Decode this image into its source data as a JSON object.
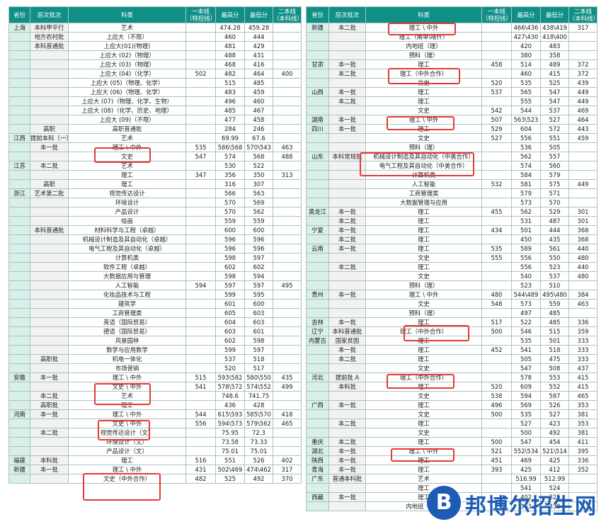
{
  "left": {
    "header": [
      "省份",
      "层次批次",
      "科类",
      "一本线（特控线）",
      "最高分",
      "最低分",
      "二本线（本科线）"
    ],
    "rows": [
      [
        "上海",
        "本科甲平行",
        "艺术",
        "",
        "474.28",
        "459.28",
        ""
      ],
      [
        "",
        "地方农村批",
        "上应大（不限）",
        "",
        "460",
        "444",
        ""
      ],
      [
        "",
        "本科普通批",
        "上应大(01)(物理)",
        "",
        "481",
        "429",
        ""
      ],
      [
        "",
        "",
        "上应大 (02)（物理）",
        "",
        "488",
        "431",
        ""
      ],
      [
        "",
        "",
        "上应大 (03)（物理）",
        "",
        "468",
        "416",
        ""
      ],
      [
        "",
        "",
        "上应大 (04)（化学）",
        "502",
        "482",
        "464",
        "400"
      ],
      [
        "",
        "",
        "上应大 (05)（物理、化学）",
        "",
        "515",
        "485",
        ""
      ],
      [
        "",
        "",
        "上应大 (06)（物理、化学）",
        "",
        "483",
        "459",
        ""
      ],
      [
        "",
        "",
        "上应大 (07)（物理、化学、生物）",
        "",
        "496",
        "460",
        ""
      ],
      [
        "",
        "",
        "上应大 (08)（化学、历史、地理）",
        "",
        "485",
        "467",
        ""
      ],
      [
        "",
        "",
        "上应大 (09)（不限）",
        "",
        "477",
        "458",
        ""
      ],
      [
        "",
        "高职",
        "高职普通批",
        "",
        "284",
        "246",
        ""
      ],
      [
        "江西",
        "提前本科（一）",
        "艺术",
        "",
        "69.99",
        "67.6",
        ""
      ],
      [
        "",
        "本一批",
        "理工 \\ 中外",
        "535",
        "586\\568",
        "570\\543",
        "463"
      ],
      [
        "",
        "",
        "文史",
        "547",
        "574",
        "568",
        "488"
      ],
      [
        "江苏",
        "本二批",
        "艺术",
        "",
        "530",
        "522",
        ""
      ],
      [
        "",
        "",
        "理工",
        "347",
        "356",
        "350",
        "313"
      ],
      [
        "",
        "高职",
        "理工",
        "",
        "316",
        "307",
        ""
      ],
      [
        "浙江",
        "艺术第二批",
        "视觉传达设计",
        "",
        "566",
        "563",
        ""
      ],
      [
        "",
        "",
        "环境设计",
        "",
        "570",
        "569",
        ""
      ],
      [
        "",
        "",
        "产品设计",
        "",
        "570",
        "562",
        ""
      ],
      [
        "",
        "",
        "绘画",
        "",
        "559",
        "559",
        ""
      ],
      [
        "",
        "本科普通批",
        "材料科学与工程（卓越）",
        "",
        "600",
        "600",
        ""
      ],
      [
        "",
        "",
        "机械设计制造及其自动化（卓越）",
        "",
        "596",
        "596",
        ""
      ],
      [
        "",
        "",
        "电气工程及其自动化（卓越）",
        "",
        "596",
        "596",
        ""
      ],
      [
        "",
        "",
        "计算机类",
        "",
        "598",
        "597",
        ""
      ],
      [
        "",
        "",
        "软件工程（卓越）",
        "",
        "602",
        "602",
        ""
      ],
      [
        "",
        "",
        "大数据应用与管理",
        "",
        "598",
        "594",
        ""
      ],
      [
        "",
        "",
        "人工智能",
        "594",
        "597",
        "597",
        "495"
      ],
      [
        "",
        "",
        "化妆品技术与工程",
        "",
        "599",
        "595",
        ""
      ],
      [
        "",
        "",
        "建筑学",
        "",
        "601",
        "600",
        ""
      ],
      [
        "",
        "",
        "工商管理类",
        "",
        "605",
        "603",
        ""
      ],
      [
        "",
        "",
        "英语（国际贸易）",
        "",
        "604",
        "603",
        ""
      ],
      [
        "",
        "",
        "德语（国际贸易）",
        "",
        "603",
        "601",
        ""
      ],
      [
        "",
        "",
        "风景园林",
        "",
        "602",
        "598",
        ""
      ],
      [
        "",
        "",
        "数学与应用数学",
        "",
        "599",
        "597",
        ""
      ],
      [
        "",
        "高职批",
        "机电一体化",
        "",
        "537",
        "518",
        ""
      ],
      [
        "",
        "",
        "市场营销",
        "",
        "520",
        "517",
        ""
      ],
      [
        "安徽",
        "本一批",
        "理工 \\ 中外",
        "515",
        "593\\582",
        "580\\550",
        "435"
      ],
      [
        "",
        "",
        "文史 \\ 中外",
        "541",
        "578\\572",
        "574\\552",
        "499"
      ],
      [
        "",
        "本二批",
        "艺术",
        "",
        "748.6",
        "741.75",
        ""
      ],
      [
        "",
        "高职批",
        "理工",
        "",
        "436",
        "428",
        ""
      ],
      [
        "河南",
        "本一批",
        "理工 \\ 中外",
        "544",
        "615\\593",
        "585\\570",
        "418"
      ],
      [
        "",
        "",
        "文史 \\ 中外",
        "556",
        "594\\573",
        "579\\562",
        "465"
      ],
      [
        "",
        "本二批",
        "视觉传达设计（文）",
        "",
        "75.95",
        "72.3",
        ""
      ],
      [
        "",
        "",
        "环境设计（文）",
        "",
        "73.58",
        "73.33",
        ""
      ],
      [
        "",
        "",
        "产品设计（文）",
        "",
        "75.01",
        "75.01",
        ""
      ],
      [
        "福建",
        "本科批",
        "理工",
        "516",
        "551",
        "526",
        "402"
      ],
      [
        "新疆",
        "本一批",
        "理工 \\ 中外",
        "431",
        "502\\469",
        "474\\462",
        "317"
      ],
      [
        "",
        "",
        "文史（中外合作）",
        "482",
        "525",
        "492",
        "370"
      ]
    ]
  },
  "right": {
    "header": [
      "省份",
      "层次批次",
      "科类",
      "一本线（特控线）",
      "最高分",
      "最低分",
      "二本线（本科线）"
    ],
    "rows": [
      [
        "新疆",
        "本二批",
        "理工 \\ 中外",
        "",
        "466\\436",
        "438\\419",
        "317"
      ],
      [
        "",
        "",
        "理工（南单\\喀什）",
        "",
        "427\\430",
        "418\\400",
        ""
      ],
      [
        "",
        "",
        "内地班（理）",
        "",
        "420",
        "483",
        ""
      ],
      [
        "",
        "",
        "预科（理）",
        "",
        "380",
        "358",
        ""
      ],
      [
        "甘肃",
        "本一批",
        "理工",
        "458",
        "514",
        "489",
        "372"
      ],
      [
        "",
        "本二批",
        "理工（中外合作）",
        "",
        "460",
        "415",
        "372"
      ],
      [
        "",
        "",
        "文史",
        "520",
        "535",
        "525",
        "439"
      ],
      [
        "山西",
        "本一批",
        "理工",
        "537",
        "565",
        "547",
        "449"
      ],
      [
        "",
        "本二批",
        "理工",
        "",
        "555",
        "547",
        "449"
      ],
      [
        "",
        "",
        "文史",
        "542",
        "544",
        "537",
        "469"
      ],
      [
        "湖南",
        "本一批",
        "理工 \\ 中外",
        "507",
        "563\\523",
        "527",
        "464"
      ],
      [
        "四川",
        "本一批",
        "理工",
        "529",
        "604",
        "572",
        "443"
      ],
      [
        "",
        "",
        "文史",
        "527",
        "556",
        "551",
        "459"
      ],
      [
        "",
        "",
        "预科（理）",
        "",
        "536",
        "505",
        ""
      ],
      [
        "山东",
        "本科常规批",
        "机械设计制造及其自动化（中美合作）",
        "",
        "562",
        "557",
        ""
      ],
      [
        "",
        "",
        "电气工程及其自动化（中美合作）",
        "",
        "574",
        "560",
        ""
      ],
      [
        "",
        "",
        "计算机类",
        "",
        "584",
        "579",
        ""
      ],
      [
        "",
        "",
        "人工智能",
        "532",
        "581",
        "575",
        "449"
      ],
      [
        "",
        "",
        "工商管理类",
        "",
        "579",
        "571",
        ""
      ],
      [
        "",
        "",
        "大数据管理与应用",
        "",
        "573",
        "570",
        ""
      ],
      [
        "黑龙江",
        "本一批",
        "理工",
        "455",
        "562",
        "529",
        "301"
      ],
      [
        "",
        "本二批",
        "理工",
        "",
        "531",
        "487",
        "301"
      ],
      [
        "宁夏",
        "本一批",
        "理工",
        "434",
        "501",
        "444",
        "368"
      ],
      [
        "",
        "本二批",
        "理工",
        "",
        "450",
        "435",
        "368"
      ],
      [
        "云南",
        "本一批",
        "理工",
        "535",
        "589",
        "561",
        "440"
      ],
      [
        "",
        "",
        "文史",
        "555",
        "556",
        "550",
        "480"
      ],
      [
        "",
        "本二批",
        "理工",
        "",
        "556",
        "523",
        "440"
      ],
      [
        "",
        "",
        "文史",
        "",
        "540",
        "537",
        "480"
      ],
      [
        "",
        "",
        "预科（理）",
        "",
        "523",
        "510",
        ""
      ],
      [
        "贵州",
        "本一批",
        "理工 \\ 中外",
        "480",
        "544\\489",
        "495\\480",
        "384"
      ],
      [
        "",
        "",
        "文史",
        "548",
        "573",
        "559",
        "463"
      ],
      [
        "",
        "",
        "预科（理）",
        "",
        "497",
        "485",
        ""
      ],
      [
        "吉林",
        "本一批",
        "理工",
        "517",
        "522",
        "485",
        "336"
      ],
      [
        "辽宁",
        "本科普通批",
        "理工（中外合作）",
        "500",
        "546",
        "515",
        "359"
      ],
      [
        "内蒙古",
        "国家贫困",
        "理工",
        "",
        "535",
        "501",
        "333"
      ],
      [
        "",
        "本一批",
        "理工",
        "452",
        "541",
        "518",
        "333"
      ],
      [
        "",
        "本二批",
        "理工",
        "",
        "505",
        "475",
        "333"
      ],
      [
        "",
        "",
        "文史",
        "",
        "547",
        "508",
        "437"
      ],
      [
        "河北",
        "提前批 A",
        "理工（中外合作）",
        "",
        "578",
        "553",
        "415"
      ],
      [
        "",
        "本科批",
        "理工",
        "520",
        "609",
        "552",
        "415"
      ],
      [
        "",
        "",
        "文史",
        "538",
        "594",
        "587",
        "465"
      ],
      [
        "广西",
        "本一批",
        "理工",
        "496",
        "569",
        "526",
        "353"
      ],
      [
        "",
        "",
        "文史",
        "500",
        "535",
        "527",
        "381"
      ],
      [
        "",
        "本二批",
        "理工",
        "",
        "527",
        "423",
        "353"
      ],
      [
        "",
        "",
        "文史",
        "",
        "500",
        "492",
        "381"
      ],
      [
        "重庆",
        "本二批",
        "理工",
        "500",
        "547",
        "454",
        "411"
      ],
      [
        "湖北",
        "本一批",
        "理工 \\ 中外",
        "521",
        "552\\534",
        "521\\514",
        "395"
      ],
      [
        "陕西",
        "本一批",
        "理工",
        "451",
        "469",
        "425",
        "336"
      ],
      [
        "青海",
        "本一批",
        "理工",
        "393",
        "425",
        "412",
        "352"
      ],
      [
        "广东",
        "普通本科批",
        "艺术",
        "",
        "516.99",
        "512.99",
        ""
      ],
      [
        "",
        "",
        "理工",
        "",
        "541",
        "524",
        ""
      ],
      [
        "西藏",
        "本一批",
        "理工",
        "",
        "402",
        "325",
        ""
      ],
      [
        "",
        "",
        "内地班（理）",
        "",
        "363",
        "338",
        ""
      ]
    ]
  },
  "logo": {
    "mark": "B",
    "text": "邦博尔招生网"
  }
}
